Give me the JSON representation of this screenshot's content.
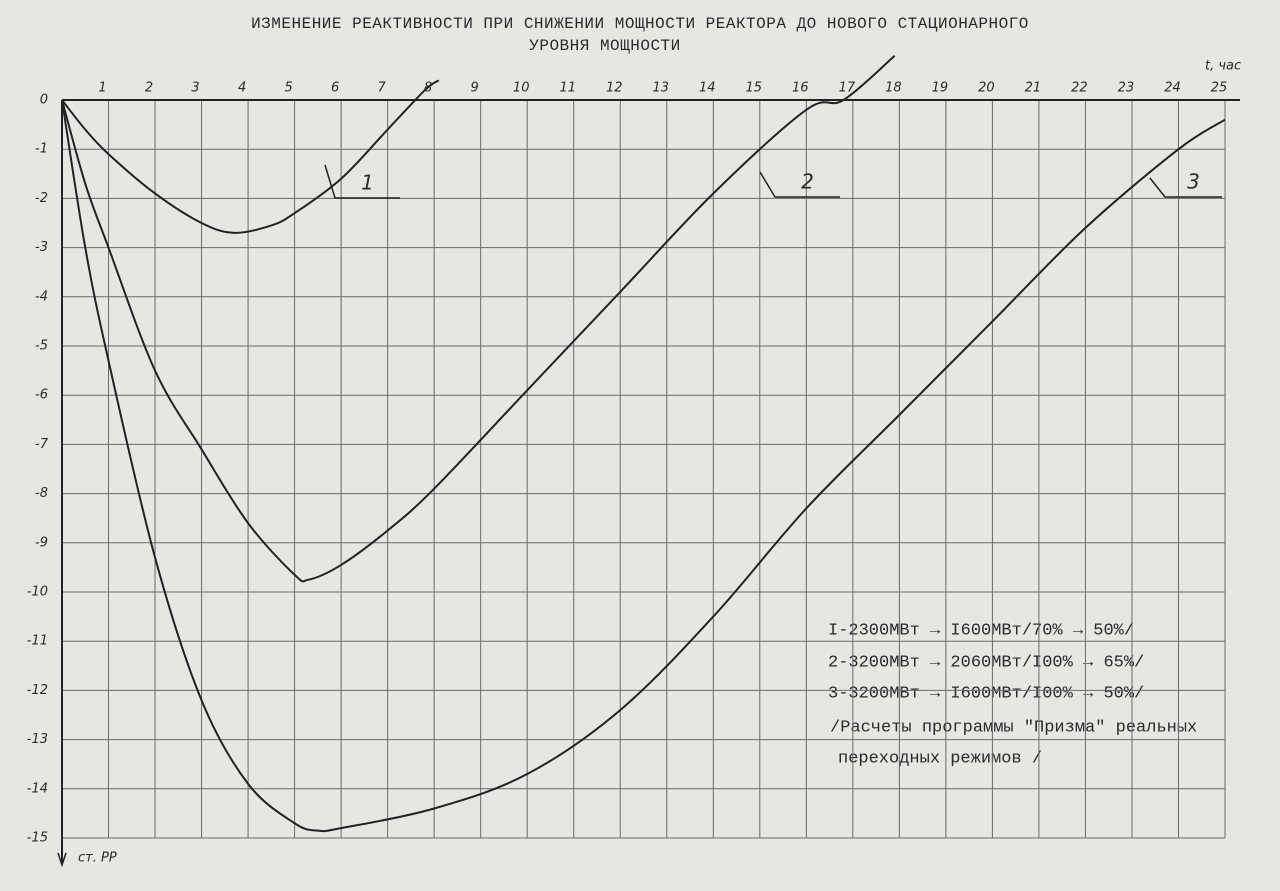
{
  "chart_data": {
    "type": "line",
    "title": [
      "ИЗМЕНЕНИЕ РЕАКТИВНОСТИ ПРИ СНИЖЕНИИ МОЩНОСТИ РЕАКТОРА ДО НОВОГО СТАЦИОНАРНОГО",
      "УРОВНЯ МОЩНОСТИ"
    ],
    "x_label": "t, час",
    "y_label": "ст. РР",
    "xlim": [
      0,
      25
    ],
    "ylim": [
      -15,
      0
    ],
    "xticks": [
      1,
      2,
      3,
      4,
      5,
      6,
      7,
      8,
      9,
      10,
      11,
      12,
      13,
      14,
      15,
      16,
      17,
      18,
      19,
      20,
      21,
      22,
      23,
      24,
      25
    ],
    "yticks": [
      0,
      -1,
      -2,
      -3,
      -4,
      -5,
      -6,
      -7,
      -8,
      -9,
      -10,
      -11,
      -12,
      -13,
      -14,
      -15
    ],
    "grid": true,
    "series": [
      {
        "name": "1",
        "color": "#222222",
        "x": [
          0,
          0.5,
          1,
          2,
          3,
          3.7,
          4.5,
          5,
          6,
          7,
          7.8,
          8.1
        ],
        "values": [
          0,
          -0.6,
          -1.1,
          -1.9,
          -2.5,
          -2.7,
          -2.55,
          -2.3,
          -1.6,
          -0.6,
          0.2,
          0.4
        ]
      },
      {
        "name": "2",
        "color": "#222222",
        "x": [
          0,
          0.5,
          1,
          2,
          3,
          4,
          5,
          5.3,
          6,
          7,
          8,
          10,
          12,
          14,
          16,
          16.8,
          17.9
        ],
        "values": [
          0,
          -1.7,
          -3,
          -5.5,
          -7.1,
          -8.6,
          -9.65,
          -9.75,
          -9.45,
          -8.75,
          -7.9,
          -5.9,
          -3.9,
          -1.9,
          -0.2,
          0,
          0.9
        ]
      },
      {
        "name": "3",
        "color": "#222222",
        "x": [
          0,
          0.5,
          1,
          2,
          3,
          4,
          5,
          5.5,
          6,
          8,
          10,
          12,
          14,
          16,
          18,
          20,
          22,
          24,
          25
        ],
        "values": [
          0,
          -3,
          -5.3,
          -9.3,
          -12.2,
          -13.9,
          -14.7,
          -14.85,
          -14.8,
          -14.4,
          -13.7,
          -12.4,
          -10.5,
          -8.3,
          -6.4,
          -4.5,
          -2.6,
          -1,
          -0.4
        ]
      }
    ],
    "notes": [
      "I-2300МВт → I600МВт/70% → 50%/",
      "2-3200МВт → 2060МВт/I00% → 65%/",
      "3-3200МВт → I600МВт/I00% → 50%/",
      "/Расчеты программы \"Призма\" реальных",
      "переходных режимов /"
    ]
  }
}
